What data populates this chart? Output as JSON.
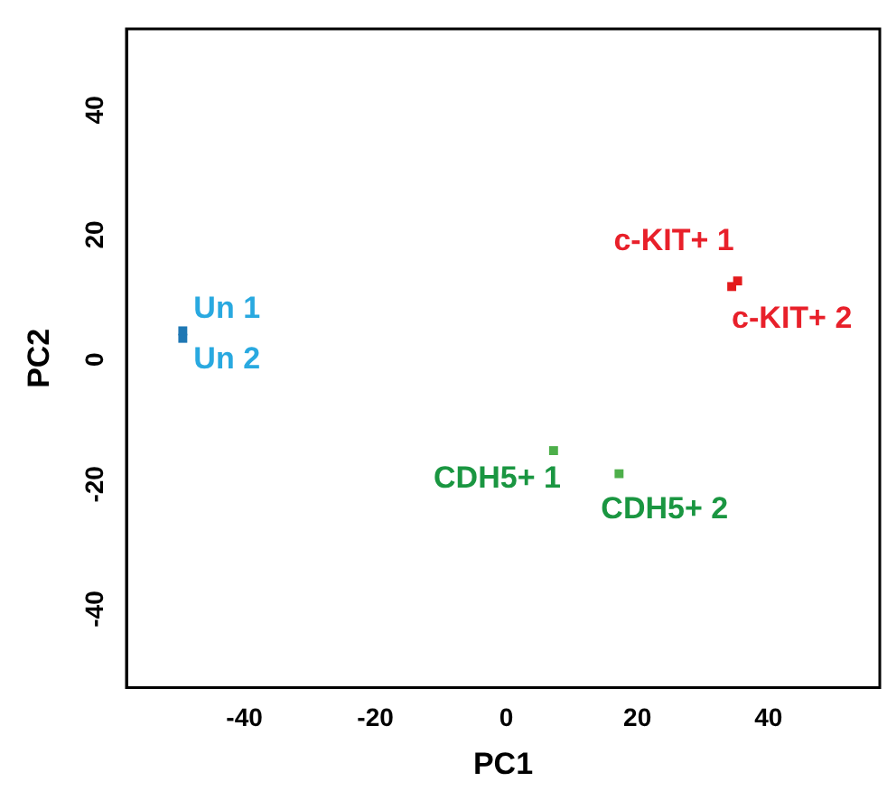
{
  "chart_data": {
    "type": "scatter",
    "xlabel": "PC1",
    "ylabel": "PC2",
    "xlim": [
      -58,
      57
    ],
    "ylim": [
      -52.6,
      53
    ],
    "xticks": [
      -40,
      -20,
      0,
      20,
      40
    ],
    "yticks": [
      -40,
      -20,
      0,
      20,
      40
    ],
    "grid": false,
    "legend": false,
    "marker": "square",
    "series": [
      {
        "name": "Un 1",
        "color": "#1f78b4",
        "x": [
          -49.4
        ],
        "values": [
          4.6
        ]
      },
      {
        "name": "Un 2",
        "color": "#1f78b4",
        "x": [
          -49.4
        ],
        "values": [
          3.4
        ]
      },
      {
        "name": "c-KIT+ 1",
        "color": "#e31a1c",
        "x": [
          35.3
        ],
        "values": [
          12.6
        ]
      },
      {
        "name": "c-KIT+ 2",
        "color": "#e31a1c",
        "x": [
          34.4
        ],
        "values": [
          11.7
        ]
      },
      {
        "name": "CDH5+ 1",
        "color": "#4daf4a",
        "x": [
          7.2
        ],
        "values": [
          -14.6
        ]
      },
      {
        "name": "CDH5+ 2",
        "color": "#4daf4a",
        "x": [
          17.2
        ],
        "values": [
          -18.3
        ]
      }
    ]
  }
}
